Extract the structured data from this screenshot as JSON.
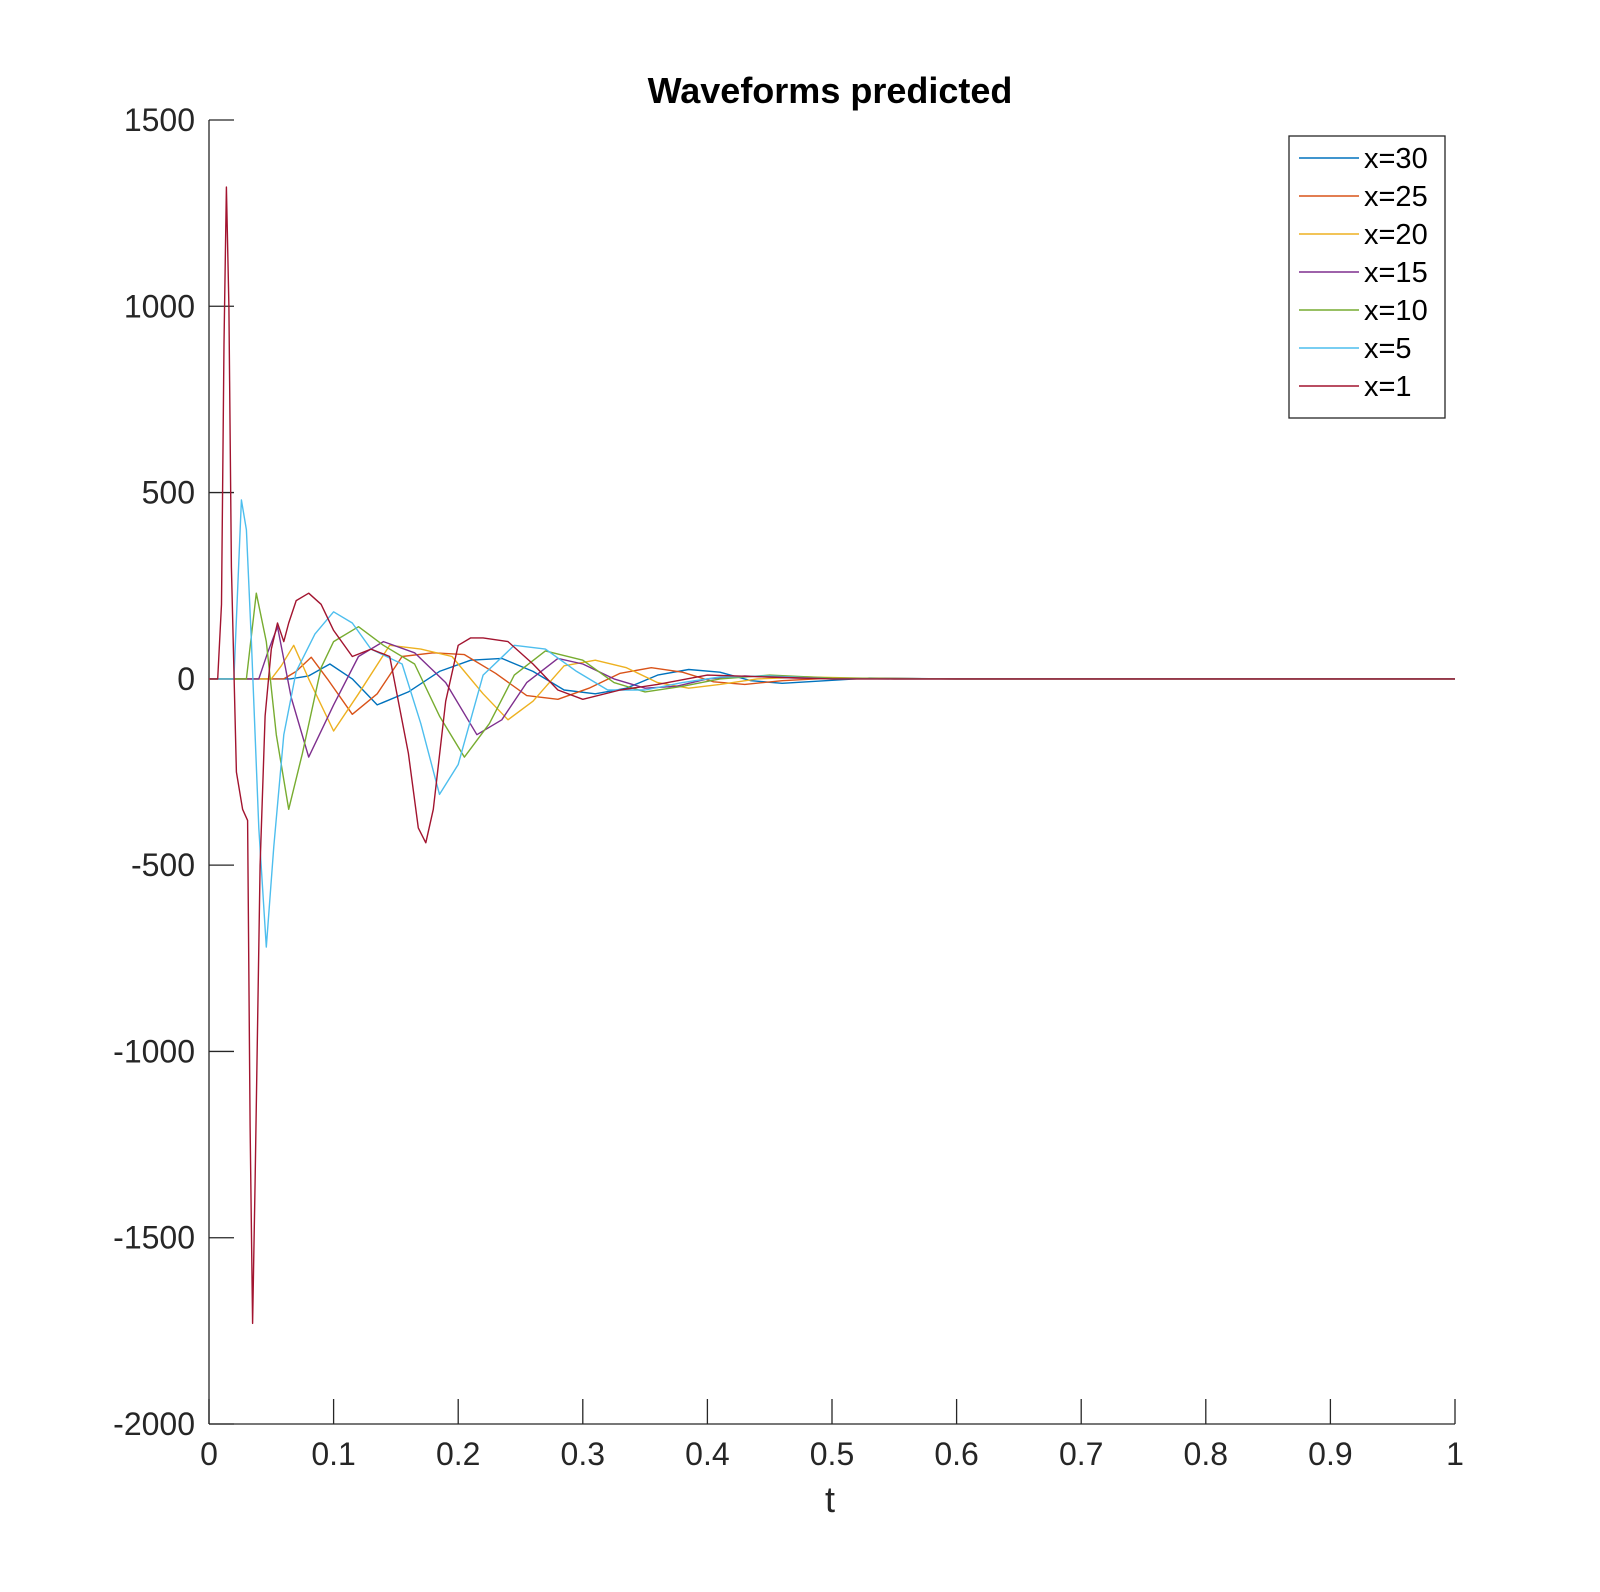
{
  "chart_data": {
    "type": "line",
    "title": "Waveforms predicted",
    "xlabel": "t",
    "ylabel": "",
    "xlim": [
      0,
      1
    ],
    "ylim": [
      -2000,
      1500
    ],
    "xticks": [
      0,
      0.1,
      0.2,
      0.3,
      0.4,
      0.5,
      0.6,
      0.7,
      0.8,
      0.9,
      1
    ],
    "xtick_labels": [
      "0",
      "0.1",
      "0.2",
      "0.3",
      "0.4",
      "0.5",
      "0.6",
      "0.7",
      "0.8",
      "0.9",
      "1"
    ],
    "yticks": [
      -2000,
      -1500,
      -1000,
      -500,
      0,
      500,
      1000,
      1500
    ],
    "ytick_labels": [
      "-2000",
      "-1500",
      "-1000",
      "-500",
      "0",
      "500",
      "1000",
      "1500"
    ],
    "grid": false,
    "legend_position": "top-right",
    "series": [
      {
        "name": "x=30",
        "color": "#0072BD",
        "x": [
          0,
          0.065,
          0.08,
          0.097,
          0.115,
          0.135,
          0.16,
          0.185,
          0.21,
          0.235,
          0.26,
          0.285,
          0.31,
          0.335,
          0.36,
          0.385,
          0.41,
          0.435,
          0.46,
          0.49,
          0.53,
          0.6,
          0.7,
          1.0
        ],
        "y": [
          0,
          0,
          8,
          40,
          0,
          -70,
          -35,
          20,
          50,
          55,
          20,
          -30,
          -40,
          -25,
          10,
          25,
          18,
          -5,
          -12,
          -6,
          2,
          0,
          0,
          0
        ]
      },
      {
        "name": "x=25",
        "color": "#D95319",
        "x": [
          0,
          0.06,
          0.07,
          0.082,
          0.095,
          0.115,
          0.135,
          0.155,
          0.18,
          0.205,
          0.23,
          0.255,
          0.28,
          0.305,
          0.33,
          0.355,
          0.38,
          0.405,
          0.43,
          0.46,
          0.5,
          0.6,
          0.7,
          1.0
        ],
        "y": [
          0,
          0,
          20,
          58,
          0,
          -95,
          -40,
          60,
          70,
          65,
          15,
          -45,
          -55,
          -25,
          15,
          30,
          18,
          -8,
          -15,
          -5,
          2,
          0,
          0,
          0
        ]
      },
      {
        "name": "x=20",
        "color": "#EDB120",
        "x": [
          0,
          0.05,
          0.058,
          0.068,
          0.08,
          0.1,
          0.12,
          0.145,
          0.17,
          0.195,
          0.22,
          0.24,
          0.26,
          0.285,
          0.31,
          0.335,
          0.36,
          0.385,
          0.41,
          0.44,
          0.48,
          0.55,
          0.7,
          1.0
        ],
        "y": [
          0,
          0,
          35,
          90,
          0,
          -140,
          -40,
          90,
          80,
          60,
          -40,
          -110,
          -60,
          35,
          50,
          30,
          -10,
          -25,
          -15,
          0,
          5,
          0,
          0,
          0
        ]
      },
      {
        "name": "x=15",
        "color": "#7E2F8E",
        "x": [
          0,
          0.04,
          0.047,
          0.055,
          0.066,
          0.08,
          0.1,
          0.12,
          0.14,
          0.165,
          0.19,
          0.215,
          0.235,
          0.255,
          0.28,
          0.3,
          0.325,
          0.35,
          0.375,
          0.4,
          0.43,
          0.47,
          0.55,
          0.7,
          1.0
        ],
        "y": [
          0,
          0,
          70,
          140,
          -50,
          -210,
          -70,
          60,
          100,
          70,
          -10,
          -150,
          -110,
          -10,
          55,
          40,
          0,
          -25,
          -20,
          0,
          8,
          2,
          0,
          0,
          0
        ]
      },
      {
        "name": "x=10",
        "color": "#77AC30",
        "x": [
          0,
          0.03,
          0.038,
          0.046,
          0.054,
          0.064,
          0.075,
          0.09,
          0.1,
          0.12,
          0.14,
          0.165,
          0.185,
          0.205,
          0.225,
          0.245,
          0.27,
          0.3,
          0.325,
          0.35,
          0.38,
          0.41,
          0.45,
          0.5,
          0.6,
          1.0
        ],
        "y": [
          0,
          0,
          230,
          100,
          -150,
          -350,
          -200,
          30,
          100,
          140,
          90,
          40,
          -100,
          -210,
          -120,
          10,
          75,
          50,
          -10,
          -35,
          -20,
          0,
          10,
          2,
          0,
          0
        ]
      },
      {
        "name": "x=5",
        "color": "#4DBEEE",
        "x": [
          0,
          0.02,
          0.026,
          0.03,
          0.034,
          0.04,
          0.046,
          0.052,
          0.06,
          0.07,
          0.085,
          0.1,
          0.115,
          0.13,
          0.155,
          0.17,
          0.185,
          0.2,
          0.22,
          0.245,
          0.27,
          0.295,
          0.32,
          0.35,
          0.38,
          0.41,
          0.45,
          0.5,
          0.6,
          1.0
        ],
        "y": [
          0,
          0,
          480,
          400,
          100,
          -400,
          -720,
          -450,
          -150,
          20,
          120,
          180,
          150,
          80,
          40,
          -120,
          -310,
          -230,
          10,
          90,
          80,
          20,
          -30,
          -30,
          -10,
          5,
          8,
          0,
          0,
          0
        ]
      },
      {
        "name": "x=1",
        "color": "#A2142F",
        "x": [
          0,
          0.007,
          0.01,
          0.012,
          0.014,
          0.016,
          0.018,
          0.022,
          0.027,
          0.031,
          0.033,
          0.035,
          0.037,
          0.041,
          0.045,
          0.05,
          0.055,
          0.06,
          0.064,
          0.07,
          0.08,
          0.09,
          0.1,
          0.115,
          0.13,
          0.145,
          0.16,
          0.168,
          0.174,
          0.18,
          0.19,
          0.2,
          0.21,
          0.22,
          0.24,
          0.26,
          0.28,
          0.3,
          0.33,
          0.36,
          0.4,
          0.45,
          0.5,
          0.6,
          1.0
        ],
        "y": [
          0,
          0,
          200,
          900,
          1320,
          1000,
          300,
          -250,
          -350,
          -380,
          -1200,
          -1730,
          -1350,
          -500,
          -100,
          80,
          150,
          100,
          150,
          210,
          230,
          200,
          130,
          60,
          80,
          60,
          -200,
          -400,
          -440,
          -350,
          -60,
          90,
          110,
          110,
          100,
          40,
          -30,
          -55,
          -30,
          -15,
          10,
          5,
          0,
          0,
          0
        ]
      }
    ]
  }
}
